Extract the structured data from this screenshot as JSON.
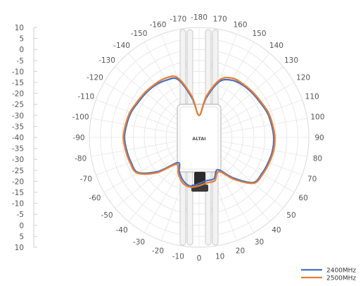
{
  "chart_data": {
    "type": "radar",
    "title": "",
    "radial_scale": {
      "tick_labels": [
        "10",
        "5",
        "0",
        "-5",
        "-10",
        "-15",
        "-20",
        "-25",
        "-30",
        "-35",
        "-40",
        "-35",
        "-30",
        "-25",
        "-20",
        "-15",
        "-10",
        "-5",
        "0",
        "5",
        "10"
      ]
    },
    "angle_labels": [
      "-180",
      "-170",
      "-160",
      "-150",
      "-140",
      "-130",
      "-120",
      "-110",
      "-100",
      "-90",
      "-80",
      "-70",
      "-60",
      "-50",
      "-40",
      "-30",
      "-20",
      "-10",
      "0",
      "10",
      "20",
      "30",
      "40",
      "50",
      "60",
      "70",
      "80",
      "90",
      "100",
      "110",
      "120",
      "130",
      "140",
      "150",
      "160",
      "170"
    ],
    "angles": [
      180,
      170,
      160,
      150,
      140,
      130,
      120,
      110,
      100,
      90,
      80,
      70,
      60,
      50,
      40,
      30,
      20,
      10,
      0,
      -10,
      -20,
      -30,
      -40,
      -50,
      -60,
      -70,
      -80,
      -90,
      -100,
      -110,
      -120,
      -130,
      -140,
      -150,
      -160,
      -170
    ],
    "rlim": [
      -40,
      10
    ],
    "series": [
      {
        "name": "2400MHz",
        "color": "#4472c4",
        "values": [
          -30,
          -22,
          -12,
          -10,
          -9,
          -8.5,
          -8,
          -7,
          -6.5,
          -6,
          -6.5,
          -7,
          -8,
          -16,
          -25,
          -22,
          -19,
          -17.5,
          -19,
          -20,
          -20,
          -23,
          -16,
          -8,
          -7,
          -6.5,
          -6,
          -6,
          -6.5,
          -7,
          -8,
          -8.5,
          -9,
          -10,
          -13,
          -22
        ]
      },
      {
        "name": "2500MHz",
        "color": "#ed7d31",
        "values": [
          -30,
          -21,
          -11,
          -9,
          -8.5,
          -8,
          -7.5,
          -6.5,
          -6,
          -5.5,
          -6,
          -6.5,
          -7.5,
          -15,
          -24,
          -21,
          -18,
          -17,
          -18,
          -19,
          -19,
          -22,
          -15,
          -7.5,
          -6.5,
          -6,
          -5.5,
          -5.5,
          -6,
          -6.5,
          -7.5,
          -8,
          -8.5,
          -9,
          -12,
          -21
        ]
      }
    ],
    "legend_position": "bottom-right",
    "grid": true
  },
  "device": {
    "logo_text": "ALTAI",
    "icon": "access-point-device-icon"
  }
}
